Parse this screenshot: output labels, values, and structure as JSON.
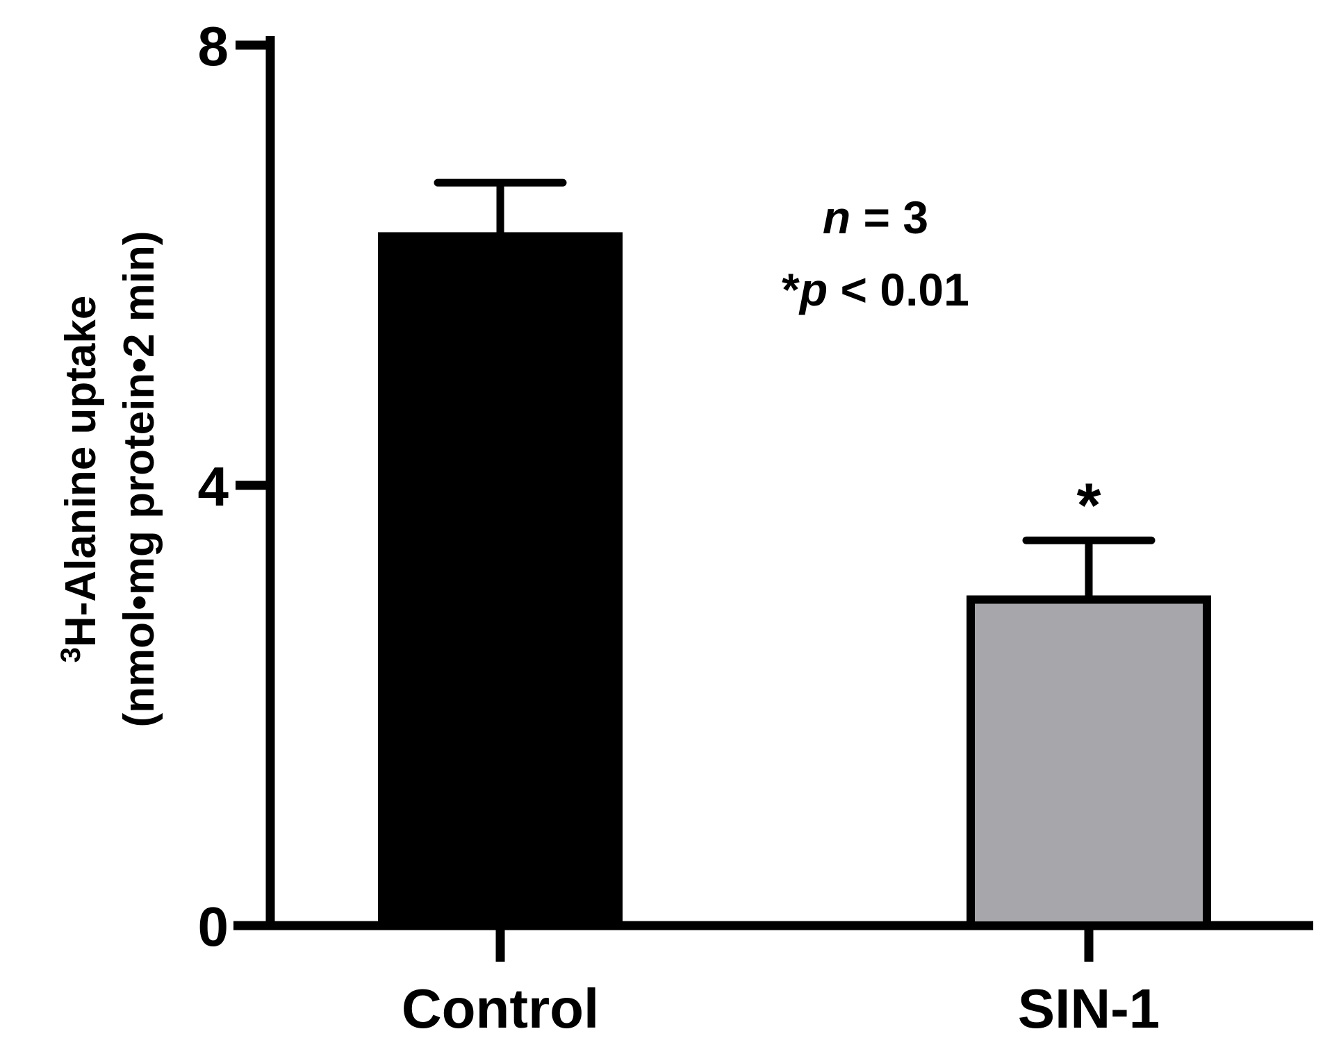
{
  "chart_data": {
    "type": "bar",
    "categories": [
      "Control",
      "SIN-1"
    ],
    "values": [
      6.3,
      3.0
    ],
    "errors": [
      0.45,
      0.5
    ],
    "significance": [
      "",
      "*"
    ],
    "ylabel_line1_superscript": "3",
    "ylabel_line1": "H-Alanine uptake",
    "ylabel_line2": "(nmol•mg protein•2 min)",
    "ylim": [
      0,
      8
    ],
    "yticks": [
      0,
      4,
      8
    ],
    "ytick_labels": [
      "0",
      "4",
      "8"
    ],
    "grid": false,
    "annotations": {
      "n_italic": "n",
      "n_rest": " = 3",
      "p_star": "*",
      "p_italic": "p",
      "p_rest": " < 0.01"
    },
    "colors": {
      "Control": "#000000",
      "SIN-1": "#a7a6aa",
      "outline": "#000000"
    }
  }
}
